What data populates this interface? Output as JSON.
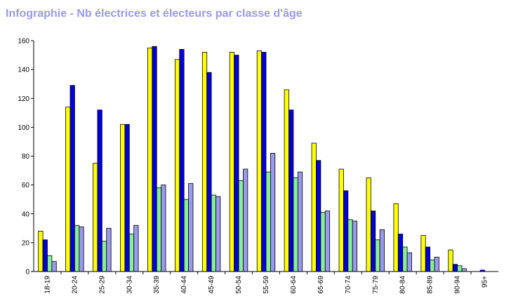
{
  "page": {
    "title": "Infographie - Nb électrices et électeurs par classe d'âge"
  },
  "chart_data": {
    "type": "bar",
    "title": "Infographie - Nb électrices et électeurs par classe d'âge",
    "xlabel": "",
    "ylabel": "",
    "ylim": [
      0,
      160
    ],
    "yticks": [
      0,
      20,
      40,
      60,
      80,
      100,
      120,
      140,
      160
    ],
    "grid": false,
    "legend": "none",
    "categories": [
      "18-19",
      "20-24",
      "25-29",
      "30-34",
      "35-39",
      "40-44",
      "45-49",
      "50-54",
      "55-59",
      "60-64",
      "65-69",
      "70-74",
      "75-79",
      "80-84",
      "85-89",
      "90-94",
      "95+"
    ],
    "series": [
      {
        "color": "#ffff00",
        "values": [
          28,
          114,
          75,
          102,
          155,
          147,
          152,
          152,
          153,
          126,
          89,
          71,
          65,
          47,
          25,
          15,
          0
        ]
      },
      {
        "color": "#0000dd",
        "values": [
          22,
          129,
          112,
          102,
          156,
          154,
          138,
          150,
          152,
          112,
          77,
          56,
          42,
          26,
          17,
          5,
          1
        ]
      },
      {
        "color": "#88ee99",
        "values": [
          11,
          32,
          21,
          26,
          58,
          50,
          53,
          63,
          69,
          65,
          41,
          36,
          22,
          17,
          8,
          4,
          0
        ]
      },
      {
        "color": "#9999ee",
        "values": [
          7,
          31,
          30,
          32,
          60,
          61,
          52,
          71,
          82,
          69,
          42,
          35,
          29,
          13,
          10,
          2,
          0
        ]
      }
    ]
  }
}
